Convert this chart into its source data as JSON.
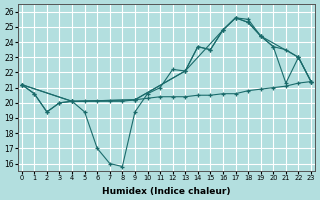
{
  "xlabel": "Humidex (Indice chaleur)",
  "bg_color": "#b3dfdf",
  "grid_color": "#ffffff",
  "line_color": "#1a6b6b",
  "xlim": [
    -0.3,
    23.3
  ],
  "ylim": [
    15.5,
    26.5
  ],
  "yticks": [
    16,
    17,
    18,
    19,
    20,
    21,
    22,
    23,
    24,
    25,
    26
  ],
  "xticks": [
    0,
    1,
    2,
    3,
    4,
    5,
    6,
    7,
    8,
    9,
    10,
    11,
    12,
    13,
    14,
    15,
    16,
    17,
    18,
    19,
    20,
    21,
    22,
    23
  ],
  "lines": [
    {
      "x": [
        0,
        1,
        2,
        3,
        4,
        5,
        6,
        7,
        8,
        9,
        10,
        11,
        12,
        13,
        14,
        15,
        16,
        17,
        18,
        19,
        20,
        21,
        22,
        23
      ],
      "y": [
        21.2,
        20.6,
        19.4,
        20.0,
        20.1,
        19.4,
        17.0,
        16.0,
        15.8,
        19.4,
        20.6,
        21.0,
        22.2,
        22.1,
        23.7,
        23.5,
        24.8,
        25.6,
        25.5,
        24.4,
        23.7,
        21.3,
        23.0,
        21.4
      ]
    },
    {
      "x": [
        0,
        1,
        2,
        3,
        4,
        5,
        6,
        7,
        8,
        9,
        10,
        11,
        12,
        13,
        14,
        15,
        16,
        17,
        18,
        19,
        20,
        21,
        22,
        23
      ],
      "y": [
        21.2,
        20.6,
        19.4,
        20.0,
        20.1,
        20.1,
        20.1,
        20.1,
        20.1,
        20.2,
        20.3,
        20.4,
        20.4,
        20.4,
        20.5,
        20.5,
        20.6,
        20.6,
        20.8,
        20.9,
        21.0,
        21.1,
        21.3,
        21.4
      ]
    },
    {
      "x": [
        0,
        4,
        9,
        13,
        14,
        15,
        16,
        17,
        18,
        19,
        20,
        21,
        22,
        23
      ],
      "y": [
        21.2,
        20.1,
        20.2,
        22.1,
        23.7,
        23.5,
        24.8,
        25.6,
        25.3,
        24.4,
        23.7,
        23.5,
        23.0,
        21.4
      ]
    },
    {
      "x": [
        0,
        4,
        9,
        13,
        16,
        17,
        18,
        19,
        22,
        23
      ],
      "y": [
        21.2,
        20.1,
        20.2,
        22.1,
        24.8,
        25.6,
        25.3,
        24.4,
        23.0,
        21.4
      ]
    }
  ]
}
